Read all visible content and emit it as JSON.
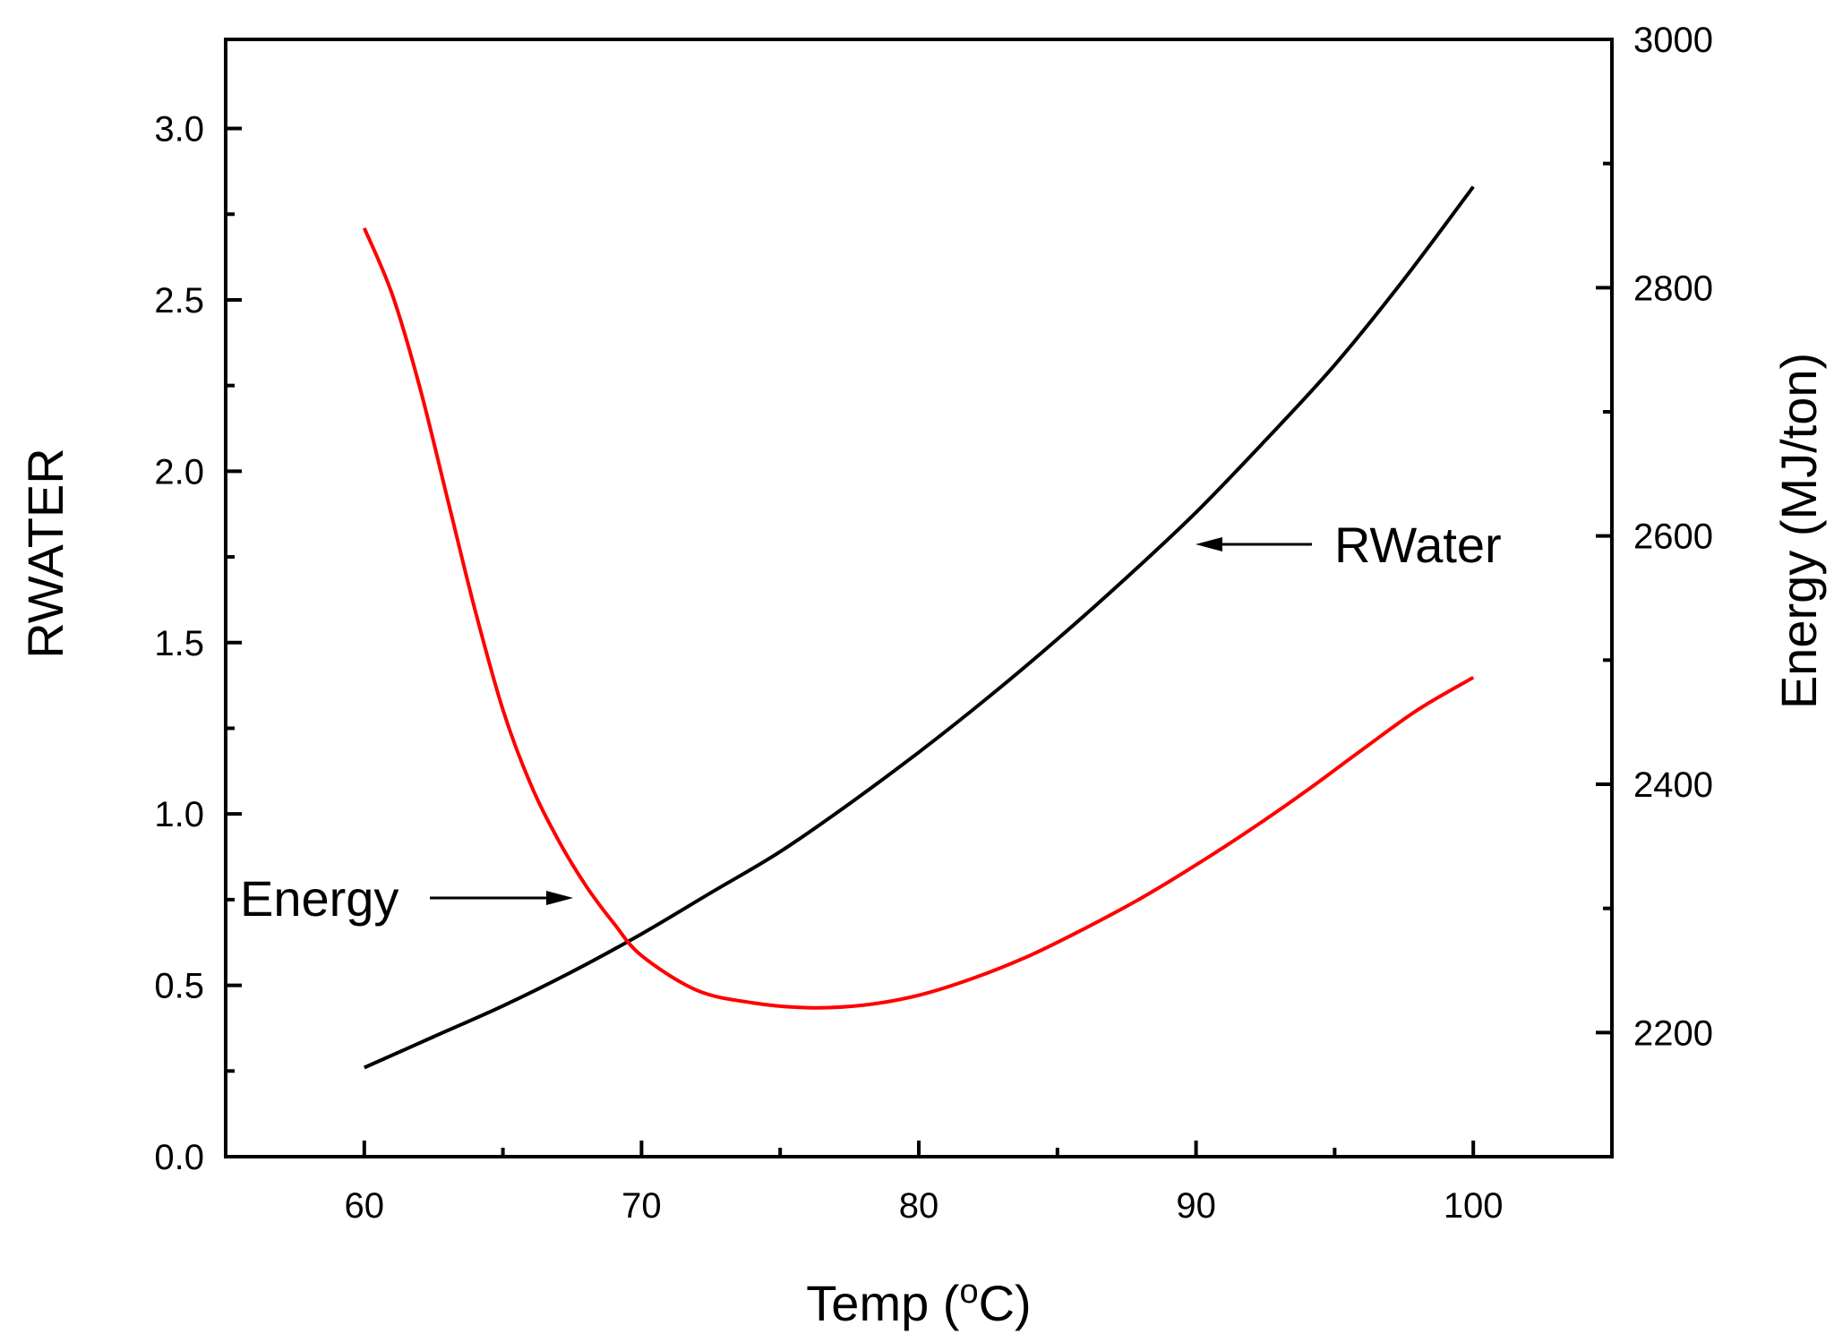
{
  "chart_data": {
    "type": "line",
    "xlabel": "Temp (",
    "xlabel_degree": "o",
    "xlabel_tail": "C)",
    "ylabel_left": "RWATER",
    "ylabel_right": "Energy (MJ/ton)",
    "xlim": [
      55,
      105
    ],
    "ylim_left": [
      0,
      3.26
    ],
    "ylim_right": [
      2100,
      3000
    ],
    "x_ticks": [
      "60",
      "70",
      "80",
      "90",
      "100"
    ],
    "y_left_ticks": [
      "0.0",
      "0.5",
      "1.0",
      "1.5",
      "2.0",
      "2.5",
      "3.0"
    ],
    "y_right_ticks": [
      "2200",
      "2400",
      "2600",
      "2800",
      "3000"
    ],
    "grid": false,
    "series": [
      {
        "name": "RWater",
        "axis": "left",
        "color": "#000000",
        "x": [
          60,
          62.5,
          65,
          67.5,
          70,
          72.5,
          75,
          77.5,
          80,
          82.5,
          85,
          87.5,
          90,
          92.5,
          95,
          97.5,
          100
        ],
        "values": [
          0.26,
          0.35,
          0.44,
          0.54,
          0.65,
          0.77,
          0.89,
          1.03,
          1.18,
          1.34,
          1.51,
          1.69,
          1.88,
          2.09,
          2.31,
          2.56,
          2.83
        ]
      },
      {
        "name": "Energy",
        "axis": "right",
        "color": "#ff0000",
        "x": [
          60,
          61,
          62,
          63,
          64,
          65,
          66,
          67,
          68,
          69,
          70,
          72,
          74,
          76,
          78,
          80,
          82,
          84,
          86,
          88,
          90,
          92,
          94,
          96,
          98,
          100
        ],
        "values": [
          2848,
          2795,
          2720,
          2630,
          2540,
          2460,
          2400,
          2355,
          2318,
          2288,
          2262,
          2234,
          2224,
          2220,
          2222,
          2230,
          2244,
          2262,
          2284,
          2308,
          2335,
          2364,
          2395,
          2428,
          2460,
          2486
        ]
      }
    ],
    "annotations": [
      {
        "text": "RWater",
        "points_to": "RWater"
      },
      {
        "text": "Energy",
        "points_to": "Energy"
      }
    ]
  }
}
